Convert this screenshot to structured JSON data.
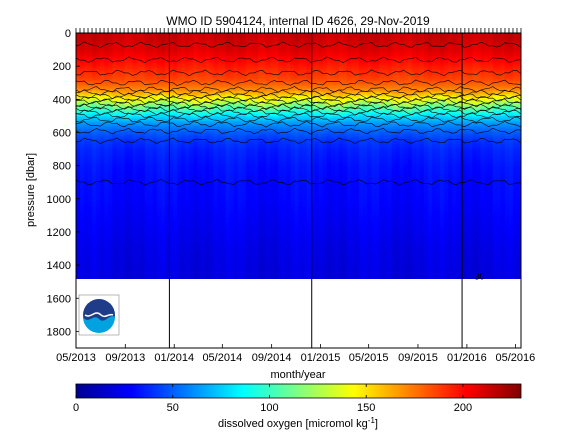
{
  "chart_data": {
    "type": "heatmap",
    "title": "WMO ID 5904124, internal ID 4626, 29-Nov-2019",
    "xlabel": "month/year",
    "ylabel": "pressure [dbar]",
    "x_start": "2013-05-01",
    "x_end": "2016-05-15",
    "x_ticks": [
      "05/2013",
      "09/2013",
      "01/2014",
      "05/2014",
      "09/2014",
      "01/2015",
      "05/2015",
      "09/2015",
      "01/2016",
      "05/2016"
    ],
    "x_tick_dates": [
      "2013-05-01",
      "2013-09-01",
      "2014-01-01",
      "2014-05-01",
      "2014-09-01",
      "2015-01-01",
      "2015-05-01",
      "2015-09-01",
      "2016-01-01",
      "2016-05-01"
    ],
    "ylim": [
      0,
      1900
    ],
    "y_reversed": true,
    "y_ticks": [
      0,
      200,
      400,
      600,
      800,
      1000,
      1200,
      1400,
      1600,
      1800
    ],
    "data_max_pressure": 1490,
    "year_boundaries": [
      "2013-12-20",
      "2014-12-10",
      "2015-12-20"
    ],
    "colorbar": {
      "label": "dissolved oxygen [micromol kg",
      "label_sup": "-1",
      "label_end": "]",
      "ticks": [
        0,
        50,
        100,
        150,
        200
      ],
      "range": [
        0,
        230
      ],
      "colormap": "jet"
    },
    "profile": {
      "pressure": [
        0,
        100,
        200,
        280,
        340,
        380,
        420,
        460,
        500,
        550,
        600,
        650,
        700,
        800,
        900,
        1000,
        1100,
        1200,
        1300,
        1400,
        1490
      ],
      "oxygen": [
        215,
        208,
        195,
        185,
        170,
        150,
        125,
        100,
        78,
        60,
        48,
        40,
        36,
        32,
        30,
        29,
        27,
        25,
        23,
        22,
        21
      ]
    },
    "contour_labels": [
      {
        "text": "30",
        "date": "2016-01-20",
        "pressure": 1470
      }
    ]
  },
  "logo": {
    "name": "NOAA",
    "colors": {
      "dark_blue": "#1f3c88",
      "light_blue": "#00a3e0"
    }
  }
}
